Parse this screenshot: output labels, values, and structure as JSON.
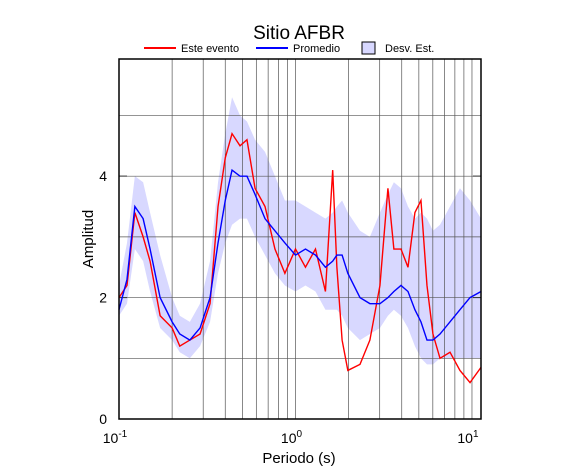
{
  "chart_data": {
    "type": "line",
    "title": "Sitio AFBR",
    "xlabel": "Periodo (s)",
    "ylabel": "Amplitud",
    "xscale": "log",
    "xlim": [
      0.1,
      11.25
    ],
    "ylim": [
      0,
      5.93
    ],
    "xticks": [
      {
        "value": 0.1,
        "label": "10",
        "exponent": "-1"
      },
      {
        "value": 1,
        "label": "10",
        "exponent": "0"
      },
      {
        "value": 10,
        "label": "10",
        "exponent": "1"
      }
    ],
    "xgrid": [
      0.2,
      0.3,
      0.4,
      0.5,
      0.6,
      0.7,
      0.8,
      0.9,
      2,
      3,
      4,
      5,
      6,
      7,
      8,
      9
    ],
    "yticks": [
      0,
      2,
      4
    ],
    "ygrid": [
      1,
      3,
      5
    ],
    "grid": true,
    "x": [
      0.1,
      0.111,
      0.123,
      0.137,
      0.15,
      0.171,
      0.2,
      0.221,
      0.252,
      0.288,
      0.328,
      0.364,
      0.4,
      0.437,
      0.485,
      0.531,
      0.59,
      0.672,
      0.765,
      0.871,
      1.0,
      1.139,
      1.298,
      1.478,
      1.625,
      1.716,
      1.837,
      1.98,
      2.32,
      2.64,
      3.01,
      3.34,
      3.61,
      3.96,
      4.34,
      4.75,
      5.14,
      5.56,
      6.01,
      6.59,
      7.51,
      8.55,
      9.75,
      11.25
    ],
    "series": [
      {
        "name": "Este evento",
        "color": "#ff0000",
        "values": [
          2.0,
          2.2,
          3.4,
          3.0,
          2.6,
          1.7,
          1.5,
          1.2,
          1.3,
          1.4,
          1.9,
          3.5,
          4.3,
          4.7,
          4.5,
          4.6,
          3.8,
          3.5,
          2.8,
          2.4,
          2.8,
          2.5,
          2.8,
          2.1,
          4.1,
          2.5,
          1.3,
          0.8,
          0.9,
          1.3,
          2.2,
          3.8,
          2.8,
          2.8,
          2.5,
          3.4,
          3.6,
          2.2,
          1.4,
          1.0,
          1.1,
          0.8,
          0.6,
          0.85
        ]
      },
      {
        "name": "Promedio",
        "color": "#0000ff",
        "values": [
          1.8,
          2.3,
          3.5,
          3.3,
          2.8,
          2.0,
          1.6,
          1.4,
          1.3,
          1.5,
          2.0,
          2.9,
          3.6,
          4.1,
          4.0,
          4.0,
          3.7,
          3.3,
          3.1,
          2.9,
          2.7,
          2.8,
          2.7,
          2.5,
          2.6,
          2.7,
          2.7,
          2.4,
          2.0,
          1.9,
          1.9,
          2.0,
          2.1,
          2.2,
          2.1,
          1.8,
          1.6,
          1.3,
          1.3,
          1.4,
          1.6,
          1.8,
          2.0,
          2.1
        ]
      }
    ],
    "band": {
      "name": "Desv. Est.",
      "color": "#d8d8ff",
      "lower": [
        1.7,
        1.9,
        2.8,
        2.6,
        2.1,
        1.5,
        1.3,
        1.1,
        1.0,
        1.2,
        1.6,
        2.4,
        2.9,
        3.2,
        3.3,
        3.3,
        3.0,
        2.7,
        2.4,
        2.2,
        2.1,
        2.2,
        2.1,
        1.8,
        1.8,
        1.8,
        1.7,
        1.5,
        1.3,
        1.4,
        1.5,
        1.7,
        1.8,
        1.7,
        1.5,
        1.2,
        1.0,
        0.9,
        0.9,
        1.0,
        1.0,
        1.0,
        1.0,
        1.0
      ],
      "upper": [
        2.2,
        2.9,
        4.0,
        3.9,
        3.4,
        2.7,
        2.0,
        1.7,
        1.6,
        1.9,
        2.6,
        3.9,
        4.7,
        5.3,
        5.0,
        4.9,
        4.6,
        4.4,
        4.0,
        3.6,
        3.6,
        3.5,
        3.4,
        3.3,
        3.4,
        3.5,
        3.6,
        3.4,
        3.1,
        3.0,
        3.4,
        3.7,
        3.9,
        3.8,
        3.5,
        3.3,
        3.4,
        3.3,
        3.1,
        3.2,
        3.5,
        3.8,
        3.6,
        3.3
      ]
    }
  }
}
